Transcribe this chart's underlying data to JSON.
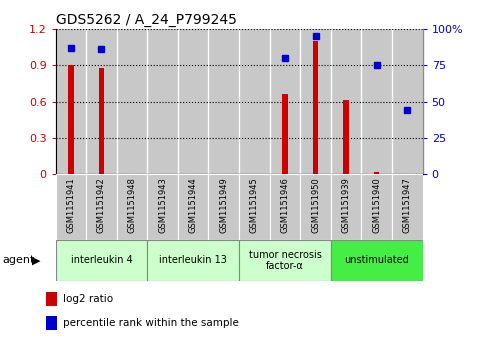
{
  "title": "GDS5262 / A_24_P799245",
  "samples": [
    "GSM1151941",
    "GSM1151942",
    "GSM1151948",
    "GSM1151943",
    "GSM1151944",
    "GSM1151949",
    "GSM1151945",
    "GSM1151946",
    "GSM1151950",
    "GSM1151939",
    "GSM1151940",
    "GSM1151947"
  ],
  "log2_ratio": [
    0.9,
    0.88,
    0.0,
    0.0,
    0.0,
    0.0,
    0.0,
    0.66,
    1.1,
    0.61,
    0.02,
    0.0
  ],
  "percentile_rank": [
    87,
    86,
    null,
    null,
    null,
    null,
    null,
    80,
    95,
    null,
    75,
    44
  ],
  "agent_groups": [
    {
      "label": "interleukin 4",
      "start": 0,
      "end": 2,
      "color": "#ccffcc"
    },
    {
      "label": "interleukin 13",
      "start": 3,
      "end": 5,
      "color": "#ccffcc"
    },
    {
      "label": "tumor necrosis\nfactor-α",
      "start": 6,
      "end": 8,
      "color": "#ccffcc"
    },
    {
      "label": "unstimulated",
      "start": 9,
      "end": 11,
      "color": "#44ee44"
    }
  ],
  "bar_color": "#cc0000",
  "dot_color": "#0000cc",
  "ylim_left": [
    0,
    1.2
  ],
  "ylim_right": [
    0,
    100
  ],
  "yticks_left": [
    0,
    0.3,
    0.6,
    0.9,
    1.2
  ],
  "yticks_right": [
    0,
    25,
    50,
    75,
    100
  ],
  "ytick_labels_left": [
    "0",
    "0.3",
    "0.6",
    "0.9",
    "1.2"
  ],
  "ytick_labels_right": [
    "0",
    "25",
    "50",
    "75",
    "100%"
  ],
  "background_color": "#ffffff",
  "grid_linestyle": ":",
  "grid_color": "#000000",
  "grid_linewidth": 0.8,
  "sample_box_color": "#c8c8c8",
  "agent_label": "agent"
}
